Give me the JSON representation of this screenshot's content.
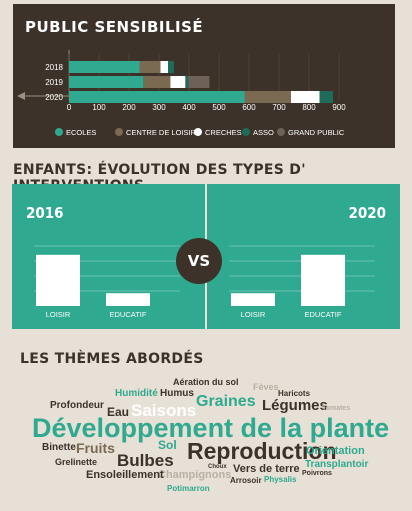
{
  "section1": {
    "title": "PUBLIC SENSIBILISÉ"
  },
  "section2": {
    "title": "ENFANTS: ÉVOLUTION DES TYPES D' INTERVENTIONS",
    "vs_label": "VS"
  },
  "section3": {
    "title": "LES THÈMES ABORDÉS"
  },
  "colors": {
    "background": "#e7e0d6",
    "dark": "#3c3229",
    "teal": "#2fa98f",
    "brown": "#7b6a52",
    "white": "#ffffff",
    "darkteal": "#1f6b5a",
    "grey": "#6e6258"
  },
  "chart_data": [
    {
      "type": "bar",
      "orientation": "horizontal",
      "stacked": true,
      "title": "PUBLIC SENSIBILISÉ",
      "categories": [
        "2018",
        "2019",
        "2020"
      ],
      "xlim": [
        0,
        900
      ],
      "xticks": [
        0,
        100,
        200,
        300,
        400,
        500,
        600,
        700,
        800,
        900
      ],
      "legend_position": "bottom",
      "series": [
        {
          "name": "ECOLES",
          "color": "#2fa98f",
          "values": [
            235,
            248,
            585
          ]
        },
        {
          "name": "CENTRE DE LOISIR",
          "color": "#7b6a52",
          "values": [
            70,
            90,
            155
          ]
        },
        {
          "name": "CRECHES",
          "color": "#ffffff",
          "values": [
            25,
            50,
            95
          ]
        },
        {
          "name": "ASSO",
          "color": "#1f6b5a",
          "values": [
            20,
            10,
            45
          ]
        },
        {
          "name": "GRAND PUBLIC",
          "color": "#6e6258",
          "values": [
            0,
            70,
            0
          ]
        }
      ]
    },
    {
      "type": "bar",
      "title": "2016",
      "categories": [
        "LOISIR",
        "EDUCATIF"
      ],
      "values": [
        80,
        20
      ],
      "ylim": [
        0,
        100
      ]
    },
    {
      "type": "bar",
      "title": "2020",
      "categories": [
        "LOISIR",
        "EDUCATIF"
      ],
      "values": [
        20,
        80
      ],
      "ylim": [
        0,
        100
      ]
    }
  ],
  "word_cloud": [
    {
      "text": "Aération du sol",
      "color": "#3c3229",
      "size": 9
    },
    {
      "text": "Fèves",
      "color": "#b8b0a4",
      "size": 9
    },
    {
      "text": "Humidité",
      "color": "#2fa98f",
      "size": 10
    },
    {
      "text": "Humus",
      "color": "#3c3229",
      "size": 10
    },
    {
      "text": "Haricots",
      "color": "#3c3229",
      "size": 8
    },
    {
      "text": "Profondeur",
      "color": "#3c3229",
      "size": 10
    },
    {
      "text": "Graines",
      "color": "#2fa98f",
      "size": 16
    },
    {
      "text": "Légumes",
      "color": "#3c3229",
      "size": 15
    },
    {
      "text": "Eau",
      "color": "#3c3229",
      "size": 12
    },
    {
      "text": "Saisons",
      "color": "#ffffff",
      "size": 17
    },
    {
      "text": "Tomates",
      "color": "#b8b0a4",
      "size": 7
    },
    {
      "text": "Développement de la plante",
      "color": "#2fa98f",
      "size": 27
    },
    {
      "text": "Binette",
      "color": "#3c3229",
      "size": 10
    },
    {
      "text": "Fruits",
      "color": "#7b6a52",
      "size": 14
    },
    {
      "text": "Sol",
      "color": "#2fa98f",
      "size": 12
    },
    {
      "text": "Reproduction",
      "color": "#3c3229",
      "size": 23
    },
    {
      "text": "Orientation",
      "color": "#2fa98f",
      "size": 11
    },
    {
      "text": "Grelinette",
      "color": "#3c3229",
      "size": 9
    },
    {
      "text": "Bulbes",
      "color": "#3c3229",
      "size": 17
    },
    {
      "text": "Transplantoir",
      "color": "#2fa98f",
      "size": 10
    },
    {
      "text": "Champignons",
      "color": "#b8b0a4",
      "size": 11
    },
    {
      "text": "Vers de terre",
      "color": "#3c3229",
      "size": 11
    },
    {
      "text": "Choux",
      "color": "#3c3229",
      "size": 6
    },
    {
      "text": "Poivrons",
      "color": "#3c3229",
      "size": 7
    },
    {
      "text": "Ensoleillement",
      "color": "#3c3229",
      "size": 11
    },
    {
      "text": "Arrosoir",
      "color": "#3c3229",
      "size": 8
    },
    {
      "text": "Physalis",
      "color": "#2fa98f",
      "size": 8
    },
    {
      "text": "Potimarron",
      "color": "#2fa98f",
      "size": 8
    }
  ]
}
